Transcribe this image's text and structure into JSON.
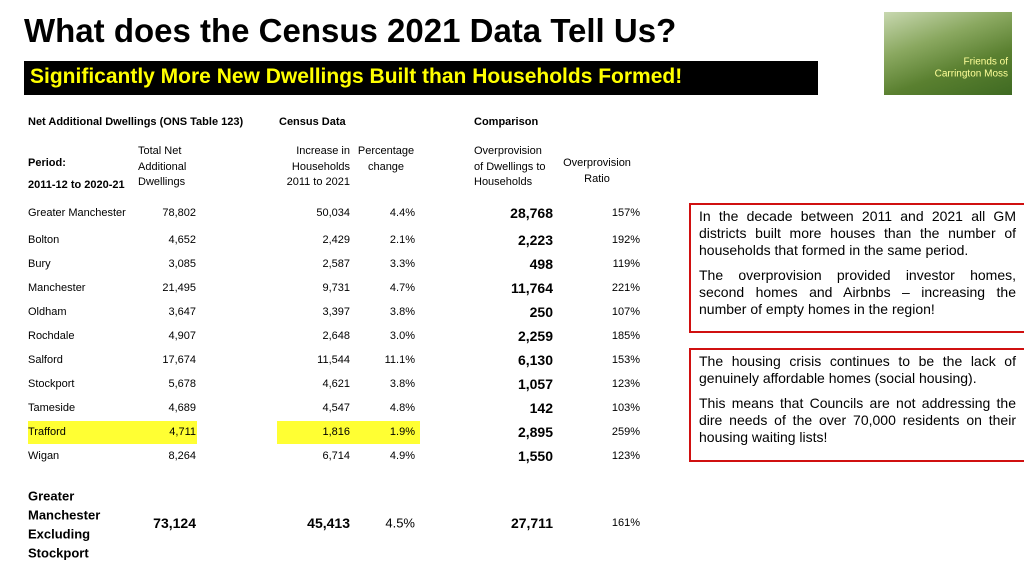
{
  "title": "What does the Census 2021 Data Tell Us?",
  "subtitle": "Significantly More New Dwellings Built than Households Formed!",
  "logo": {
    "lines": [
      "Friends of",
      "Carrington Moss"
    ]
  },
  "table": {
    "groups": [
      "Net Additional Dwellings (ONS Table 123)",
      "Census Data",
      "Comparison"
    ],
    "headers": [
      {
        "lines": [
          "Period:",
          "2011-12 to 2020-21"
        ]
      },
      {
        "lines": [
          "Total Net",
          "Additional",
          "Dwellings"
        ]
      },
      {
        "lines": [
          "Increase in",
          "Households",
          "2011 to 2021"
        ]
      },
      {
        "lines": [
          "Percentage",
          "change"
        ]
      },
      {
        "lines": [
          "Overprovision",
          "of Dwellings to",
          "Households"
        ]
      },
      {
        "lines": [
          "Overprovision",
          "Ratio"
        ]
      }
    ],
    "rows": [
      [
        "Greater Manchester",
        "78,802",
        "50,034",
        "4.4%",
        "28,768",
        "157%"
      ],
      [
        "Bolton",
        "4,652",
        "2,429",
        "2.1%",
        "2,223",
        "192%"
      ],
      [
        "Bury",
        "3,085",
        "2,587",
        "3.3%",
        "498",
        "119%"
      ],
      [
        "Manchester",
        "21,495",
        "9,731",
        "4.7%",
        "11,764",
        "221%"
      ],
      [
        "Oldham",
        "3,647",
        "3,397",
        "3.8%",
        "250",
        "107%"
      ],
      [
        "Rochdale",
        "4,907",
        "2,648",
        "3.0%",
        "2,259",
        "185%"
      ],
      [
        "Salford",
        "17,674",
        "11,544",
        "11.1%",
        "6,130",
        "153%"
      ],
      [
        "Stockport",
        "5,678",
        "4,621",
        "3.8%",
        "1,057",
        "123%"
      ],
      [
        "Tameside",
        "4,689",
        "4,547",
        "4.8%",
        "142",
        "103%"
      ],
      [
        "Trafford",
        "4,711",
        "1,816",
        "1.9%",
        "2,895",
        "259%"
      ],
      [
        "Wigan",
        "8,264",
        "6,714",
        "4.9%",
        "1,550",
        "123%"
      ]
    ],
    "total": {
      "name": [
        "Greater",
        "Manchester",
        "Excluding",
        "Stockport"
      ],
      "values": [
        "73,124",
        "45,413",
        "4.5%",
        "27,711",
        "161%"
      ]
    }
  },
  "notes": [
    [
      "In the decade between 2011 and 2021 all GM districts built more houses than the number of households that formed in the same period.",
      "The overprovision provided investor homes, second homes and Airbnbs – increasing the number of empty homes in the region!"
    ],
    [
      "The housing crisis continues to be the lack of genuinely affordable homes (social housing).",
      "This means that Councils are not addressing the dire needs of the over 70,000 residents on their housing waiting lists!"
    ]
  ]
}
